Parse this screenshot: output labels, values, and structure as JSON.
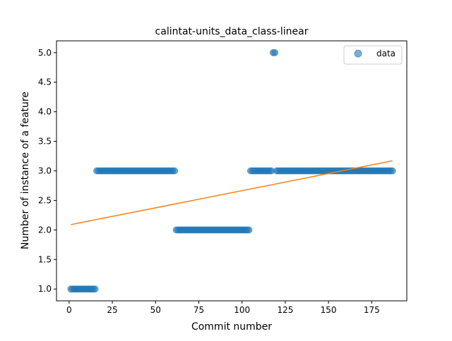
{
  "chart_data": {
    "type": "scatter",
    "title": "calintat-units_data_class-linear",
    "xlabel": "Commit number",
    "ylabel": "Number of instance of a feature",
    "xlim": [
      -7.3,
      195.3
    ],
    "ylim": [
      0.8,
      5.2
    ],
    "xticks": [
      0,
      25,
      50,
      75,
      100,
      125,
      150,
      175
    ],
    "yticks": [
      1.0,
      1.5,
      2.0,
      2.5,
      3.0,
      3.5,
      4.0,
      4.5,
      5.0
    ],
    "xtick_labels": [
      "0",
      "25",
      "50",
      "75",
      "100",
      "125",
      "150",
      "175"
    ],
    "ytick_labels": [
      "1.0",
      "1.5",
      "2.0",
      "2.5",
      "3.0",
      "3.5",
      "4.0",
      "4.5",
      "5.0"
    ],
    "grid": false,
    "legend_position": "top-right",
    "series": [
      {
        "name": "data",
        "kind": "points",
        "color": "#1f77b4",
        "segments": [
          {
            "x_from": 1,
            "x_to": 15,
            "y": 1
          },
          {
            "x_from": 16,
            "x_to": 61,
            "y": 3
          },
          {
            "x_from": 62,
            "x_to": 104,
            "y": 2
          },
          {
            "x_from": 105,
            "x_to": 117,
            "y": 3
          },
          {
            "x_from": 118,
            "x_to": 119,
            "y": 5
          },
          {
            "x_from": 120,
            "x_to": 187,
            "y": 3
          }
        ]
      },
      {
        "name": "",
        "kind": "line",
        "color": "#ff7f0e",
        "x": [
          1,
          187
        ],
        "y": [
          2.09,
          3.17
        ]
      }
    ]
  }
}
